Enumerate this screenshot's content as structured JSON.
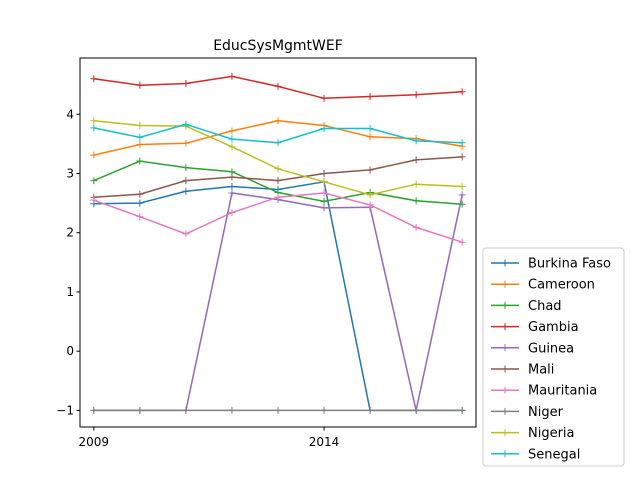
{
  "chart_data": {
    "type": "line",
    "title": "EducSysMgmtWEF",
    "xlabel": "",
    "ylabel": "",
    "x": [
      2009,
      2010,
      2011,
      2012,
      2013,
      2014,
      2015,
      2016,
      2017
    ],
    "xlim": [
      2008.7,
      2017.3
    ],
    "ylim": [
      -1.28,
      4.95
    ],
    "xticks": [
      2009,
      2014
    ],
    "yticks": [
      -1,
      0,
      1,
      2,
      3,
      4
    ],
    "grid": false,
    "legend_position": "right",
    "series": [
      {
        "name": "Burkina Faso",
        "color": "#1f77b4",
        "values": [
          2.49,
          2.5,
          2.7,
          2.78,
          2.73,
          2.86,
          -1,
          -1,
          -1
        ]
      },
      {
        "name": "Cameroon",
        "color": "#ff7f0e",
        "values": [
          3.31,
          3.49,
          3.51,
          3.72,
          3.89,
          3.81,
          3.62,
          3.59,
          3.46
        ]
      },
      {
        "name": "Chad",
        "color": "#2ca02c",
        "values": [
          2.88,
          3.21,
          3.1,
          3.03,
          2.68,
          2.53,
          2.68,
          2.54,
          2.48
        ]
      },
      {
        "name": "Gambia",
        "color": "#d62728",
        "values": [
          4.6,
          4.49,
          4.52,
          4.64,
          4.47,
          4.27,
          4.3,
          4.33,
          4.38
        ]
      },
      {
        "name": "Guinea",
        "color": "#9467bd",
        "values": [
          -1,
          -1,
          -1,
          2.67,
          2.56,
          2.42,
          2.43,
          -1,
          2.64
        ]
      },
      {
        "name": "Mali",
        "color": "#8c564b",
        "values": [
          2.6,
          2.65,
          2.88,
          2.94,
          2.88,
          3.0,
          3.06,
          3.23,
          3.28
        ]
      },
      {
        "name": "Mauritania",
        "color": "#e377c2",
        "values": [
          2.55,
          2.27,
          1.98,
          2.34,
          2.6,
          2.67,
          2.47,
          2.09,
          1.84
        ]
      },
      {
        "name": "Niger",
        "color": "#7f7f7f",
        "values": [
          -1,
          -1,
          -1,
          -1,
          -1,
          -1,
          -1,
          -1,
          -1
        ]
      },
      {
        "name": "Nigeria",
        "color": "#bcbd22",
        "values": [
          3.89,
          3.81,
          3.8,
          3.45,
          3.08,
          2.86,
          2.64,
          2.82,
          2.78
        ]
      },
      {
        "name": "Senegal",
        "color": "#17becf",
        "values": [
          3.77,
          3.61,
          3.83,
          3.58,
          3.52,
          3.76,
          3.76,
          3.55,
          3.52
        ]
      }
    ]
  }
}
